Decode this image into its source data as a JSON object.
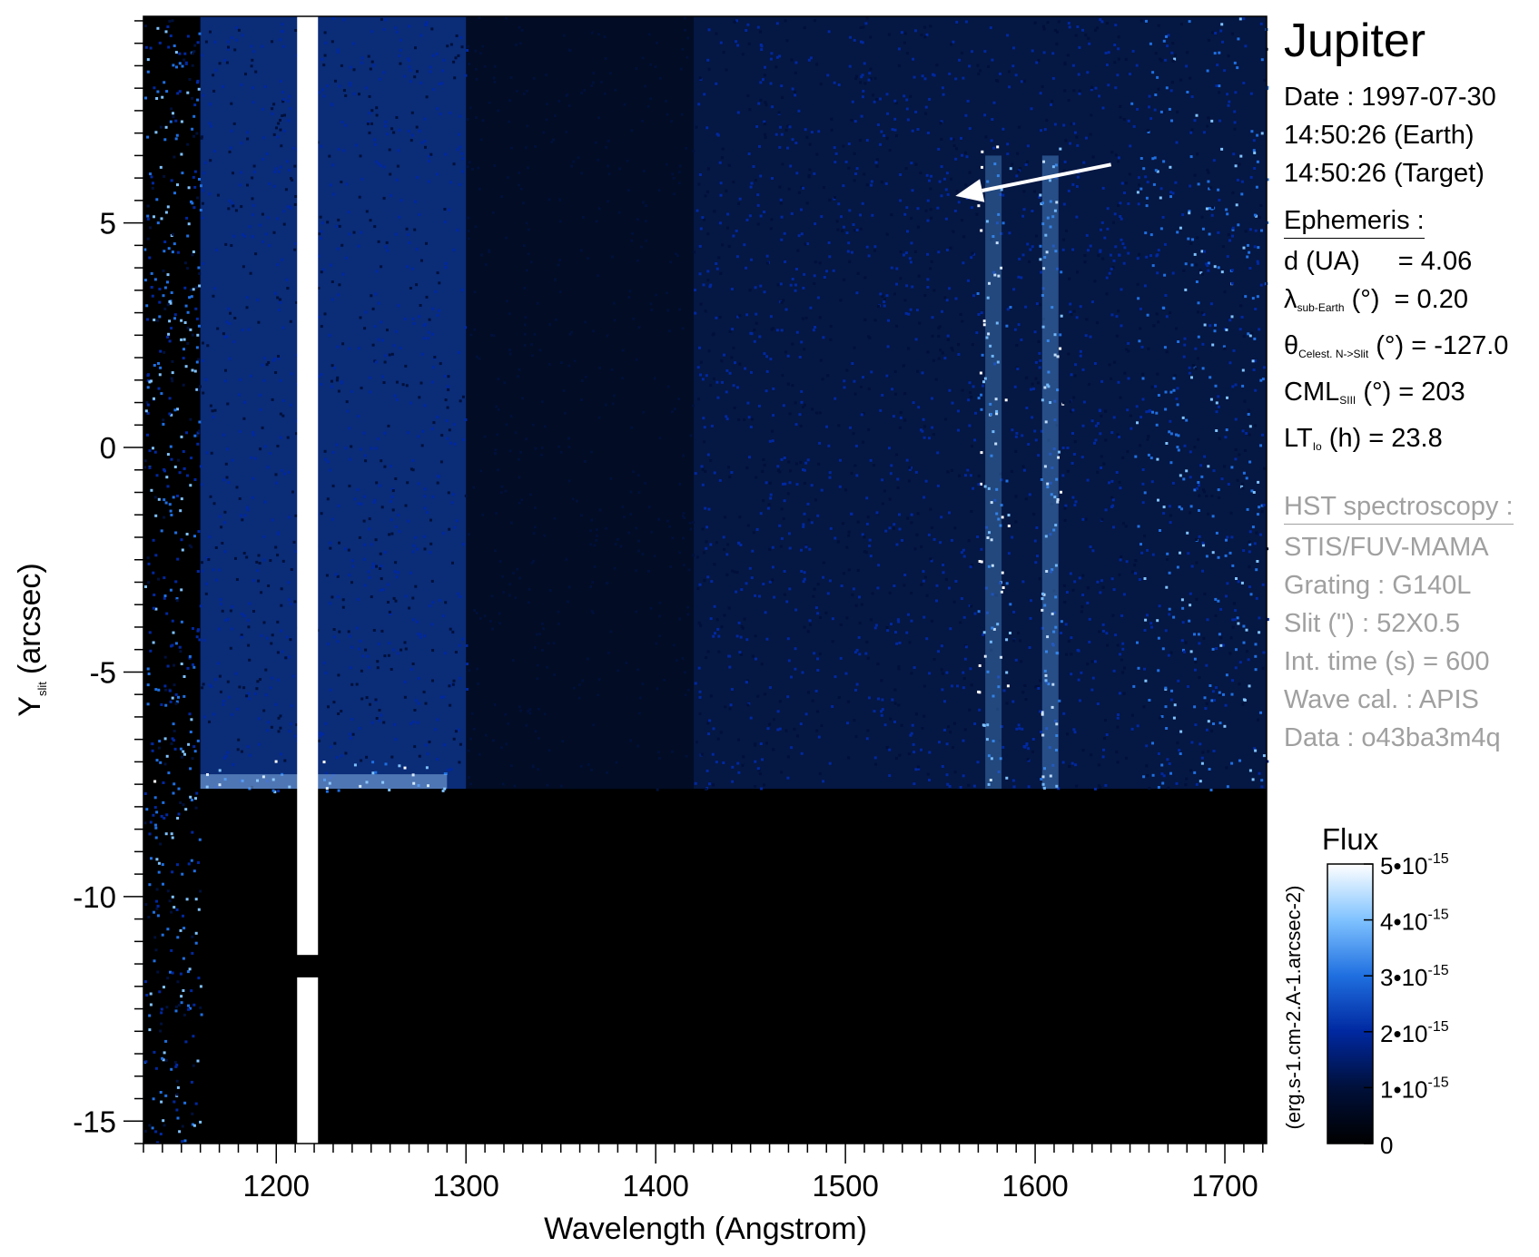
{
  "chart_data": {
    "type": "heatmap",
    "title": "",
    "xlabel": "Wavelength (Angstrom)",
    "ylabel_main": "Y",
    "ylabel_sub": "slit",
    "ylabel_unit": "(arcsec)",
    "xlim": [
      1130,
      1722
    ],
    "ylim": [
      -15.5,
      9.6
    ],
    "x_ticks": [
      1200,
      1300,
      1400,
      1500,
      1600,
      1700
    ],
    "x_minor_step": 10,
    "y_ticks": [
      5,
      0,
      -5,
      -10,
      -15
    ],
    "y_minor_step": 0.5,
    "planet_disk_edge_y": -7.6,
    "lyman_alpha_band": [
      1211,
      1222
    ],
    "lyman_alpha_gap_y": [
      -11.8,
      -11.3
    ],
    "emission_bands_x": [
      1578,
      1608
    ],
    "arrow": {
      "from": [
        1640,
        6.3
      ],
      "to": [
        1558,
        5.6
      ]
    },
    "colorbar": {
      "title": "Flux",
      "label": "(erg.s-1.cm-2.A-1.arcsec-2)",
      "min": 0,
      "max": 5e-15,
      "tick_values": [
        0,
        1e-15,
        2e-15,
        3e-15,
        4e-15,
        5e-15
      ],
      "tick_labels": [
        "0",
        "1•10",
        "2•10",
        "3•10",
        "4•10",
        "5•10"
      ],
      "tick_exponent": "-15",
      "colors": [
        "#000000",
        "#00103a",
        "#0028a0",
        "#1f6fe0",
        "#7fc2ff",
        "#ffffff"
      ]
    }
  },
  "info": {
    "target": "Jupiter",
    "date": "Date : 1997-07-30",
    "time_earth": "14:50:26 (Earth)",
    "time_target": "14:50:26 (Target)",
    "ephem_header": "Ephemeris :",
    "d_label": "d (UA)",
    "d_value": "= 4.06",
    "lambda_sym": "λ",
    "lambda_sub": "sub-Earth",
    "lambda_unit": "(°)",
    "lambda_value": "= 0.20",
    "theta_sym": "θ",
    "theta_sub": "Celest. N->Slit",
    "theta_unit": "(°)",
    "theta_value": "= -127.0",
    "cml_sym": "CML",
    "cml_sub": "SIII",
    "cml_unit": "(°)",
    "cml_value": "= 203",
    "lt_sym": "LT",
    "lt_sub": "Io",
    "lt_unit": "(h)",
    "lt_value": "= 23.8",
    "hst_header": "HST spectroscopy :",
    "instrument": "STIS/FUV-MAMA",
    "grating": "Grating : G140L",
    "slit": "Slit (\") : 52X0.5",
    "int_time": "Int. time (s) = 600",
    "wave_cal": "Wave cal. : APIS",
    "data_id": "Data : o43ba3m4q"
  }
}
